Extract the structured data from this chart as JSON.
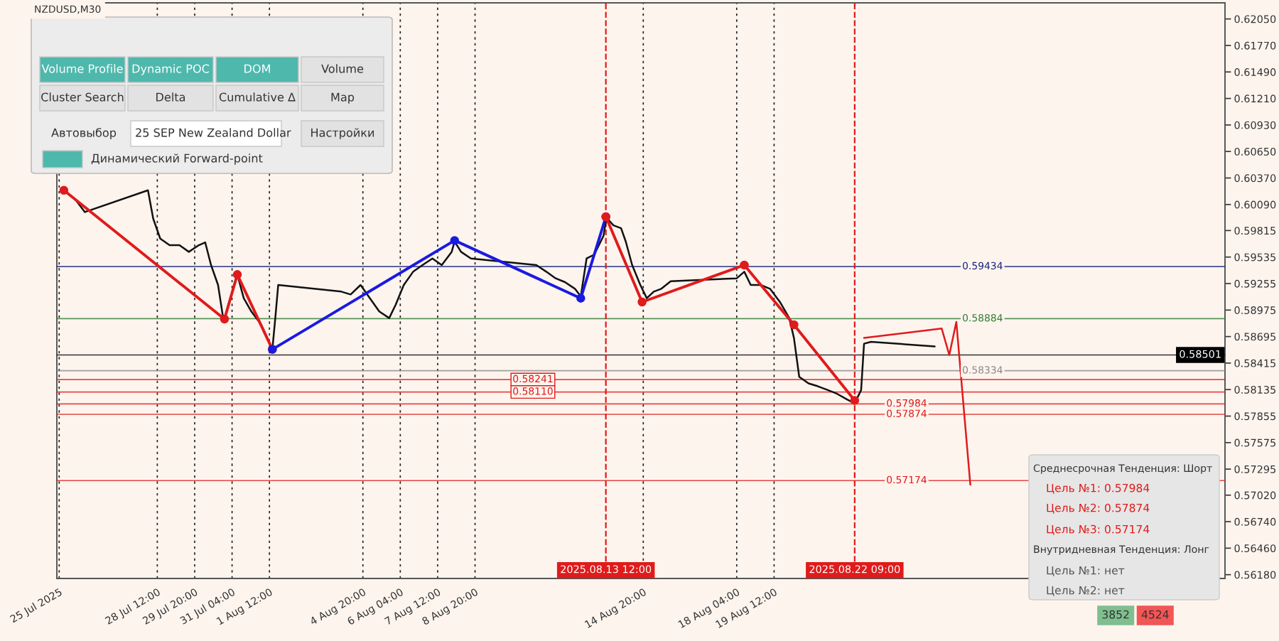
{
  "chart_data": {
    "type": "line",
    "series": [
      {
        "color": "#111111",
        "x": [
          "2025-07-25T04:00",
          "2025-07-25T14:00",
          "2025-07-25T22:00",
          "2025-07-28T04:00",
          "2025-07-28T08:30",
          "2025-07-28T14:30",
          "2025-07-28T22:30",
          "2025-07-29T07:00",
          "2025-07-29T15:00",
          "2025-07-29T23:30",
          "2025-07-30T05:00",
          "2025-07-30T10:00",
          "2025-07-30T16:00",
          "2025-07-30T20:00",
          "2025-07-30T21:30",
          "2025-07-31T02:30",
          "2025-07-31T08:30",
          "2025-07-31T14:00",
          "2025-07-31T20:30",
          "2025-08-01T05:00",
          "2025-08-01T11:30",
          "2025-08-01T14:30",
          "2025-08-01T17:00",
          "2025-08-01T19:30",
          "2025-08-04T01:30",
          "2025-08-04T09:30",
          "2025-08-04T18:00",
          "2025-08-05T02:00",
          "2025-08-05T10:00",
          "2025-08-05T18:30",
          "2025-08-06T00:00",
          "2025-08-06T07:00",
          "2025-08-06T15:00",
          "2025-08-06T23:00",
          "2025-08-07T07:30",
          "2025-08-07T15:30",
          "2025-08-08T00:00",
          "2025-08-08T02:30",
          "2025-08-08T08:00",
          "2025-08-08T16:30",
          "2025-08-11T00:30",
          "2025-08-11T09:00",
          "2025-08-11T17:00",
          "2025-08-12T01:00",
          "2025-08-12T09:30",
          "2025-08-12T14:30",
          "2025-08-12T19:30",
          "2025-08-13T02:00",
          "2025-08-13T10:00",
          "2025-08-13T12:30",
          "2025-08-13T18:30",
          "2025-08-14T01:00",
          "2025-08-14T05:00",
          "2025-08-14T10:30",
          "2025-08-14T17:30",
          "2025-08-14T23:00",
          "2025-08-15T05:00",
          "2025-08-15T11:30",
          "2025-08-15T19:30",
          "2025-08-18T04:00",
          "2025-08-18T10:30",
          "2025-08-18T16:00",
          "2025-08-19T00:30",
          "2025-08-19T08:30",
          "2025-08-19T17:00",
          "2025-08-20T01:00",
          "2025-08-20T05:00",
          "2025-08-20T09:30",
          "2025-08-20T17:30",
          "2025-08-21T01:30",
          "2025-08-21T10:00",
          "2025-08-21T18:00",
          "2025-08-22T02:30",
          "2025-08-22T09:00",
          "2025-08-22T14:30",
          "2025-08-22T17:00",
          "2025-08-22T23:00",
          "2025-08-25T05:30"
        ],
        "values": [
          0.6024,
          0.6014,
          0.6001,
          0.6024,
          0.5994,
          0.5973,
          0.5966,
          0.5966,
          0.5959,
          0.5966,
          0.5969,
          0.5945,
          0.5924,
          0.5892,
          0.5888,
          0.591,
          0.5935,
          0.591,
          0.5896,
          0.5882,
          0.5864,
          0.5856,
          0.5889,
          0.5924,
          0.5917,
          0.5914,
          0.5924,
          0.591,
          0.5896,
          0.5889,
          0.5903,
          0.5924,
          0.5938,
          0.5945,
          0.5952,
          0.5945,
          0.5959,
          0.597,
          0.5959,
          0.5952,
          0.5945,
          0.5938,
          0.5931,
          0.5927,
          0.592,
          0.5912,
          0.5952,
          0.5956,
          0.5976,
          0.5995,
          0.5987,
          0.5984,
          0.597,
          0.5945,
          0.5924,
          0.591,
          0.5917,
          0.592,
          0.5928,
          0.5931,
          0.5938,
          0.5924,
          0.5924,
          0.592,
          0.5906,
          0.5889,
          0.5868,
          0.5827,
          0.582,
          0.5817,
          0.5813,
          0.5809,
          0.5803,
          0.5799,
          0.5813,
          0.5862,
          0.5864,
          0.5859
        ]
      },
      {
        "color": "#e01b1b",
        "marker": "circle",
        "x": [
          "2025-07-25T04:00",
          "2025-07-30T21:30",
          "2025-07-31T08:30",
          "2025-08-01T14:30"
        ],
        "values": [
          0.6024,
          0.5888,
          0.5935,
          0.5856
        ]
      },
      {
        "color": "#1a1ae0",
        "marker": "circle",
        "x": [
          "2025-08-01T14:30",
          "2025-08-08T02:30",
          "2025-08-12T14:30",
          "2025-08-13T12:00"
        ],
        "values": [
          0.5856,
          0.5971,
          0.591,
          0.5996
        ]
      },
      {
        "color": "#e01b1b",
        "marker": "circle",
        "x": [
          "2025-08-13T12:00",
          "2025-08-14T19:00",
          "2025-08-18T10:30",
          "2025-08-20T05:00",
          "2025-08-22T09:00"
        ],
        "values": [
          0.5996,
          0.5906,
          0.5945,
          0.5882,
          0.5802
        ]
      },
      {
        "color": "#e01b1b",
        "x": [
          "2025-08-22T17:00",
          "2025-08-25T11:30",
          "2025-08-25T18:00",
          "2025-08-26T00:00",
          "2025-08-26T12:00"
        ],
        "values": [
          0.5868,
          0.5878,
          0.585,
          0.5885,
          0.5713
        ]
      }
    ],
    "xlim": [
      "2025-07-24T22:00",
      "2025-09-04T14:00"
    ],
    "ylim": [
      0.5614,
      0.6222
    ],
    "xticks": [
      {
        "value": "2025-07-25T00:00",
        "label": "25 Jul 2025"
      },
      {
        "value": "2025-07-28T12:00",
        "label": "28 Jul 12:00"
      },
      {
        "value": "2025-07-29T20:00",
        "label": "29 Jul 20:00"
      },
      {
        "value": "2025-07-31T04:00",
        "label": "31 Jul 04:00"
      },
      {
        "value": "2025-08-01T12:00",
        "label": "1 Aug 12:00"
      },
      {
        "value": "2025-08-04T20:00",
        "label": "4 Aug 20:00"
      },
      {
        "value": "2025-08-06T04:00",
        "label": "6 Aug 04:00"
      },
      {
        "value": "2025-08-07T12:00",
        "label": "7 Aug 12:00"
      },
      {
        "value": "2025-08-08T20:00",
        "label": "8 Aug 20:00"
      },
      {
        "value": "2025-08-14T20:00",
        "label": "14 Aug 20:00"
      },
      {
        "value": "2025-08-18T04:00",
        "label": "18 Aug 04:00"
      },
      {
        "value": "2025-08-19T12:00",
        "label": "19 Aug 12:00"
      }
    ],
    "yticks": [
      {
        "value": 0.6205,
        "label": "0.62050"
      },
      {
        "value": 0.6177,
        "label": "0.61770"
      },
      {
        "value": 0.6149,
        "label": "0.61490"
      },
      {
        "value": 0.6121,
        "label": "0.61210"
      },
      {
        "value": 0.6093,
        "label": "0.60930"
      },
      {
        "value": 0.6065,
        "label": "0.60650"
      },
      {
        "value": 0.6037,
        "label": "0.60370"
      },
      {
        "value": 0.6009,
        "label": "0.60090"
      },
      {
        "value": 0.59815,
        "label": "0.59815"
      },
      {
        "value": 0.59535,
        "label": "0.59535"
      },
      {
        "value": 0.59255,
        "label": "0.59255"
      },
      {
        "value": 0.58975,
        "label": "0.58975"
      },
      {
        "value": 0.58695,
        "label": "0.58695"
      },
      {
        "value": 0.58415,
        "label": "0.58415"
      },
      {
        "value": 0.58135,
        "label": "0.58135"
      },
      {
        "value": 0.57855,
        "label": "0.57855"
      },
      {
        "value": 0.57575,
        "label": "0.57575"
      },
      {
        "value": 0.57295,
        "label": "0.57295"
      },
      {
        "value": 0.5702,
        "label": "0.57020"
      },
      {
        "value": 0.5674,
        "label": "0.56740"
      },
      {
        "value": 0.5646,
        "label": "0.56460"
      },
      {
        "value": 0.5618,
        "label": "0.56180"
      }
    ],
    "grid": "x",
    "ref_lines": [
      {
        "axis": "y",
        "value": 0.59434,
        "label": "0.59434",
        "color": "#1a237e"
      },
      {
        "axis": "y",
        "value": 0.58884,
        "label": "0.58884",
        "color": "#2e7d32"
      },
      {
        "axis": "y",
        "value": 0.58334,
        "label": "0.58334",
        "color": "#888888"
      },
      {
        "axis": "y",
        "value": 0.57984,
        "label": "0.57984",
        "color": "#e01b1b"
      },
      {
        "axis": "y",
        "value": 0.57874,
        "label": "0.57874",
        "color": "#e01b1b"
      },
      {
        "axis": "y",
        "value": 0.57174,
        "label": "0.57174",
        "color": "#e01b1b"
      },
      {
        "axis": "y",
        "value": 0.58241,
        "label": "0.58241",
        "color": "#e01b1b"
      },
      {
        "axis": "y",
        "value": 0.5811,
        "label": "0.58110",
        "color": "#e01b1b"
      },
      {
        "axis": "y",
        "value": 0.58501,
        "label": "0.58501",
        "color": "#000000"
      },
      {
        "axis": "x",
        "value": "2025-08-13T12:00",
        "label": "2025.08.13 12:00",
        "color": "#e01b1b",
        "line_style": "dashed"
      },
      {
        "axis": "x",
        "value": "2025-08-22T09:00",
        "label": "2025.08.22 09:00",
        "color": "#e01b1b",
        "line_style": "dashed"
      }
    ],
    "annotations": [
      "NZDUSD,M30",
      "Volume Profile",
      "Dynamic POC",
      "DOM",
      "Volume",
      "Cluster Search",
      "Delta",
      "Cumulative Δ",
      "Map",
      "Автовыбор",
      "25 SEP New Zealand Dollar",
      "Настройки",
      "Динамический Forward-point",
      "Среднесрочная Тенденция: Шорт",
      "Цель №1: 0.57984",
      "Цель №2: 0.57874",
      "Цель №3: 0.57174",
      "Внутридневная Тенденция: Лонг",
      "Цель №1: нет",
      "Цель №2: нет",
      "3852",
      "4524"
    ]
  }
}
